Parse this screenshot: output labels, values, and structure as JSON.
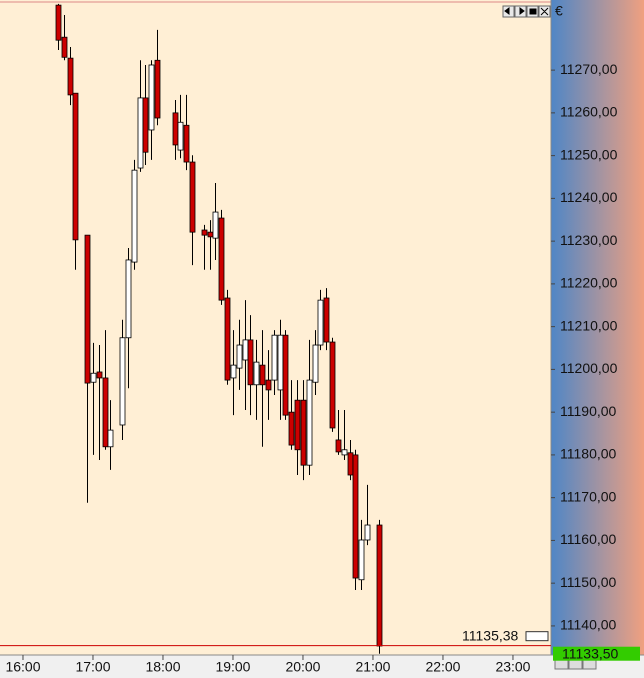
{
  "chart_data": {
    "type": "candlestick",
    "currency": "€",
    "x": [
      990,
      995,
      1000,
      1005,
      1015,
      1020,
      1025,
      1030,
      1035,
      1045,
      1050,
      1055,
      1060,
      1065,
      1070,
      1075,
      1090,
      1095,
      1100,
      1105,
      1115,
      1120,
      1125,
      1130,
      1135,
      1140,
      1145,
      1150,
      1155,
      1160,
      1165,
      1170,
      1175,
      1180,
      1185,
      1190,
      1195,
      1200,
      1205,
      1210,
      1215,
      1220,
      1225,
      1230,
      1235,
      1240,
      1245,
      1250,
      1255,
      1265
    ],
    "open": [
      11285.2,
      11277.7,
      11272.8,
      11264.6,
      11231.4,
      11197.0,
      11199.4,
      11198.0,
      11181.9,
      11187.0,
      11207.4,
      11225.1,
      11247.1,
      11263.5,
      11256.0,
      11272.3,
      11260.0,
      11251.3,
      11257.1,
      11248.5,
      11232.6,
      11232.1,
      11230.7,
      11235.4,
      11216.7,
      11198.0,
      11200.3,
      11202.2,
      11206.9,
      11196.4,
      11201.0,
      11197.5,
      11197.5,
      11195.2,
      11208.0,
      11190.0,
      11192.8,
      11192.8,
      11177.6,
      11197.0,
      11205.7,
      11216.7,
      11206.4,
      11183.5,
      11180.0,
      11180.5,
      11180.0,
      11150.8,
      11160.1,
      11163.6
    ],
    "high": [
      11285.5,
      11282.9,
      11275.4,
      11264.6,
      11231.4,
      11206.2,
      11205.7,
      11209.2,
      11192.8,
      11211.6,
      11228.4,
      11249.0,
      11272.3,
      11271.2,
      11272.3,
      11279.4,
      11263.0,
      11264.2,
      11264.2,
      11250.1,
      11233.8,
      11234.9,
      11243.6,
      11237.3,
      11218.6,
      11209.2,
      11211.6,
      11216.2,
      11212.7,
      11206.9,
      11209.2,
      11204.5,
      11209.2,
      11211.6,
      11209.2,
      11197.5,
      11197.5,
      11197.5,
      11206.9,
      11209.2,
      11218.6,
      11219.0,
      11207.4,
      11190.5,
      11190.5,
      11183.5,
      11181.2,
      11164.8,
      11173.0,
      11164.8
    ],
    "low": [
      11274.7,
      11272.3,
      11261.8,
      11223.3,
      11168.8,
      11180.0,
      11178.8,
      11181.2,
      11176.5,
      11183.5,
      11195.6,
      11223.3,
      11246.2,
      11247.8,
      11249.0,
      11257.1,
      11249.0,
      11249.4,
      11246.6,
      11224.4,
      11223.3,
      11223.3,
      11225.6,
      11215.1,
      11196.4,
      11189.3,
      11195.2,
      11190.5,
      11189.3,
      11188.2,
      11181.9,
      11188.2,
      11194.0,
      11188.2,
      11188.2,
      11181.2,
      11175.3,
      11174.1,
      11175.3,
      11194.0,
      11204.5,
      11204.5,
      11185.4,
      11180.0,
      11178.8,
      11174.1,
      11148.4,
      11148.4,
      11158.9,
      11133.5
    ],
    "close": [
      11277.0,
      11273.0,
      11264.2,
      11230.3,
      11196.8,
      11199.1,
      11198.0,
      11181.9,
      11185.8,
      11207.4,
      11225.6,
      11246.6,
      11263.5,
      11250.8,
      11271.2,
      11258.8,
      11252.5,
      11257.8,
      11248.5,
      11232.1,
      11231.4,
      11231.0,
      11236.8,
      11216.2,
      11197.5,
      11201.0,
      11205.7,
      11206.9,
      11196.4,
      11201.7,
      11196.4,
      11195.2,
      11208.0,
      11208.0,
      11189.3,
      11182.3,
      11181.2,
      11177.6,
      11197.5,
      11205.7,
      11216.2,
      11206.4,
      11186.3,
      11180.7,
      11181.2,
      11175.3,
      11151.2,
      11160.1,
      11163.6,
      11135.3
    ],
    "up_color": "#ffffff",
    "down_color": "#cc0000",
    "xlim": [
      940.3,
      1412.6
    ],
    "xticks": [
      {
        "value": 960,
        "label": "16:00"
      },
      {
        "value": 1020,
        "label": "17:00"
      },
      {
        "value": 1080,
        "label": "18:00"
      },
      {
        "value": 1140,
        "label": "19:00"
      },
      {
        "value": 1200,
        "label": "20:00"
      },
      {
        "value": 1260,
        "label": "21:00"
      },
      {
        "value": 1320,
        "label": "22:00"
      },
      {
        "value": 1380,
        "label": "23:00"
      }
    ],
    "ylim": [
      11133.2,
      11286.4
    ],
    "yticks": [
      {
        "value": 11140,
        "label": "11140,00"
      },
      {
        "value": 11150,
        "label": "11150,00"
      },
      {
        "value": 11160,
        "label": "11160,00"
      },
      {
        "value": 11170,
        "label": "11170,00"
      },
      {
        "value": 11180,
        "label": "11180,00"
      },
      {
        "value": 11190,
        "label": "11190,00"
      },
      {
        "value": 11200,
        "label": "11200,00"
      },
      {
        "value": 11210,
        "label": "11210,00"
      },
      {
        "value": 11220,
        "label": "11220,00"
      },
      {
        "value": 11230,
        "label": "11230,00"
      },
      {
        "value": 11240,
        "label": "11240,00"
      },
      {
        "value": 11250,
        "label": "11250,00"
      },
      {
        "value": 11260,
        "label": "11260,00"
      },
      {
        "value": 11270,
        "label": "11270,00"
      }
    ],
    "last_price": {
      "value": 11135.38,
      "label": "11135,38"
    },
    "bid_price": {
      "value": 11133.5,
      "label": "11133,50"
    }
  }
}
